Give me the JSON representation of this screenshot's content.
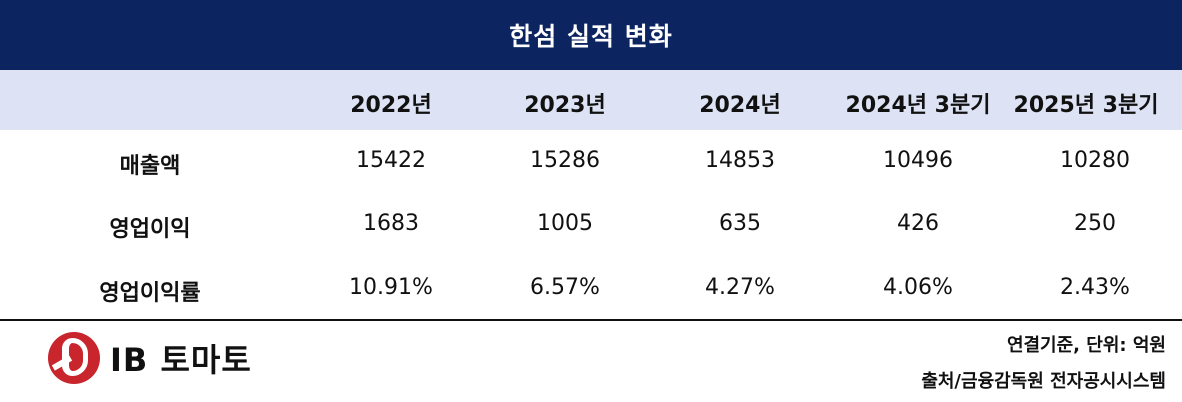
{
  "title": "한섬 실적 변화",
  "columns": [
    "2022년",
    "2023년",
    "2024년",
    "2024년 3분기",
    "2025년 3분기"
  ],
  "rows": [
    {
      "label": "매출액",
      "values": [
        "15422",
        "15286",
        "14853",
        "10496",
        "10280"
      ]
    },
    {
      "label": "영업이익",
      "values": [
        "1683",
        "1005",
        "635",
        "426",
        "250"
      ]
    },
    {
      "label": "영업이익률",
      "values": [
        "10.91%",
        "6.57%",
        "4.27%",
        "4.06%",
        "2.43%"
      ]
    }
  ],
  "footer": {
    "logo_text": "IB 토마토",
    "note": "연결기준, 단위: 억원",
    "source": "출처/금융감독원 전자공시시스템"
  },
  "colors": {
    "title_bg": "#0c2460",
    "header_bg": "#dde3f4",
    "logo_red": "#c8262c"
  }
}
